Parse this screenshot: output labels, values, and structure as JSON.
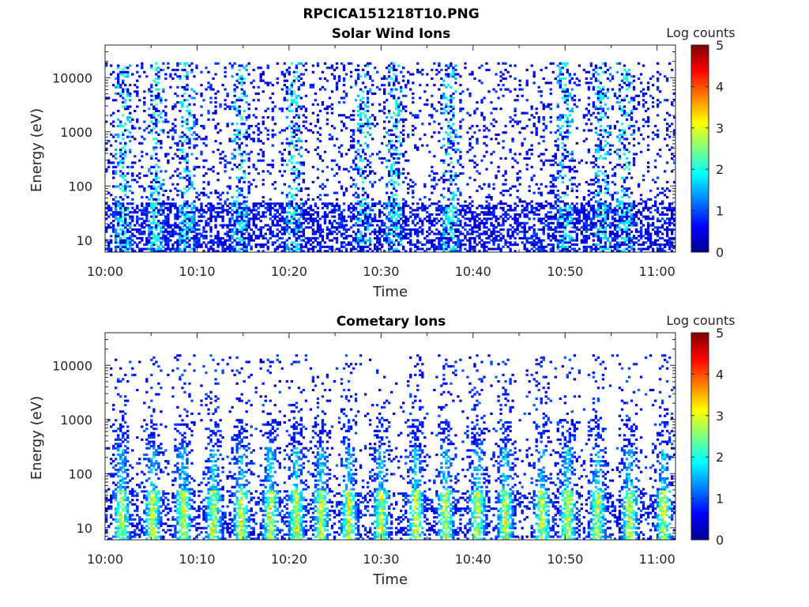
{
  "figure": {
    "title": "RPCICA151218T10.PNG"
  },
  "chart_data": [
    {
      "type": "heatmap",
      "title": "Solar Wind Ions",
      "xlabel": "Time",
      "ylabel": "Energy (eV)",
      "x_ticks": [
        "10:00",
        "10:10",
        "10:20",
        "10:30",
        "10:40",
        "10:50",
        "11:00"
      ],
      "xlim": [
        "10:00",
        "11:02"
      ],
      "yscale": "log",
      "y_ticks": [
        "10",
        "100",
        "1000",
        "10000"
      ],
      "ylim": [
        6,
        40000
      ],
      "colorbar": {
        "label": "Log counts",
        "ticks": [
          "0",
          "1",
          "2",
          "3",
          "4",
          "5"
        ],
        "range": [
          0,
          5
        ],
        "colormap": "jet"
      },
      "bursts_minutes": [
        2,
        5.5,
        8.8,
        14.7,
        20.5,
        28,
        31.5,
        37.5,
        50,
        54,
        56.5
      ],
      "notes": "Sparse low-level counts (log ~0-1) across 10 eV–20 keV; brighter (log ~1.5-2) streaks at low energies near bursts"
    },
    {
      "type": "heatmap",
      "title": "Cometary Ions",
      "xlabel": "Time",
      "ylabel": "Energy (eV)",
      "x_ticks": [
        "10:00",
        "10:10",
        "10:20",
        "10:30",
        "10:40",
        "10:50",
        "11:00"
      ],
      "xlim": [
        "10:00",
        "11:02"
      ],
      "yscale": "log",
      "y_ticks": [
        "10",
        "100",
        "1000",
        "10000"
      ],
      "ylim": [
        6,
        40000
      ],
      "colorbar": {
        "label": "Log counts",
        "ticks": [
          "0",
          "1",
          "2",
          "3",
          "4",
          "5"
        ],
        "range": [
          0,
          5
        ],
        "colormap": "jet"
      },
      "bursts_minutes": [
        1.8,
        5.2,
        8.5,
        11.8,
        14.8,
        18,
        20.8,
        23.5,
        26.5,
        30,
        33.8,
        37,
        40.5,
        43.5,
        47.5,
        50.3,
        53.5,
        57,
        60.7
      ],
      "notes": "Strong low-energy (10–40 eV) bursts reaching log ~3-3.5, with tails up to a few keV"
    }
  ]
}
